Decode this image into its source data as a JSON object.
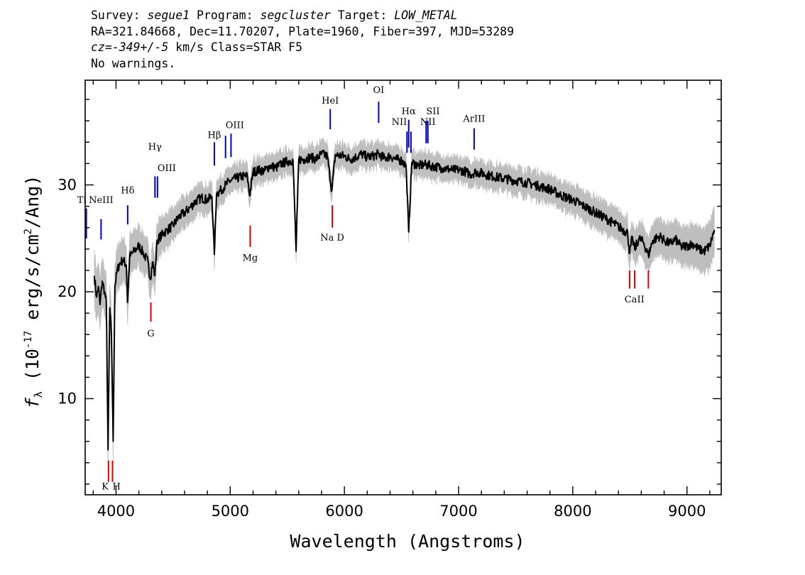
{
  "header": {
    "survey_label": "Survey: ",
    "survey": "segue1",
    "program_label": " Program: ",
    "program": "segcluster",
    "target_label": " Target: ",
    "target": "LOW_METAL",
    "line2": "RA=321.84668, Dec=11.70207, Plate=1960, Fiber=397, MJD=53289",
    "cz_label": "cz=",
    "cz_value": "-349+/-5",
    "cz_rest": " km/s Class=STAR F5",
    "line4": "No warnings."
  },
  "chart_data": {
    "type": "line",
    "xlabel": "Wavelength (Angstroms)",
    "ylabel": "f_λ (10^-17 erg/s/cm^2/Ang)",
    "ylabel_parts": {
      "f": "f",
      "sub": "λ",
      "pre": " (10",
      "exp": "-17",
      "mid": " erg/s/cm",
      "exp2": "2",
      "post": "/Ang)"
    },
    "xlim": [
      3730,
      9300
    ],
    "ylim": [
      1,
      39.8
    ],
    "x_ticks": [
      4000,
      5000,
      6000,
      7000,
      8000,
      9000
    ],
    "y_ticks": [
      10,
      20,
      30
    ],
    "x_minor_step": 200,
    "y_minor_step": 2,
    "series": [
      {
        "role": "flux",
        "color": "#000000",
        "points": [
          [
            3810,
            21.5
          ],
          [
            3830,
            19.5
          ],
          [
            3845,
            20.5
          ],
          [
            3860,
            18.8
          ],
          [
            3880,
            21.0
          ],
          [
            3900,
            20.0
          ],
          [
            3915,
            19.0
          ],
          [
            3930,
            5.2
          ],
          [
            3945,
            18.5
          ],
          [
            3960,
            16.0
          ],
          [
            3975,
            6.0
          ],
          [
            3990,
            20.5
          ],
          [
            4010,
            22.0
          ],
          [
            4030,
            22.6
          ],
          [
            4060,
            23.0
          ],
          [
            4090,
            22.5
          ],
          [
            4101,
            19.0
          ],
          [
            4120,
            23.3
          ],
          [
            4160,
            23.8
          ],
          [
            4200,
            24.3
          ],
          [
            4240,
            23.6
          ],
          [
            4280,
            22.8
          ],
          [
            4300,
            21.2
          ],
          [
            4320,
            22.8
          ],
          [
            4340,
            21.5
          ],
          [
            4360,
            24.8
          ],
          [
            4400,
            25.3
          ],
          [
            4450,
            25.8
          ],
          [
            4500,
            26.2
          ],
          [
            4550,
            27.0
          ],
          [
            4600,
            27.4
          ],
          [
            4650,
            27.9
          ],
          [
            4700,
            28.5
          ],
          [
            4750,
            28.8
          ],
          [
            4800,
            28.6
          ],
          [
            4840,
            28.9
          ],
          [
            4861,
            23.5
          ],
          [
            4880,
            29.2
          ],
          [
            4920,
            29.5
          ],
          [
            4960,
            30.0
          ],
          [
            5000,
            30.4
          ],
          [
            5050,
            30.6
          ],
          [
            5100,
            30.8
          ],
          [
            5150,
            30.8
          ],
          [
            5170,
            29.0
          ],
          [
            5200,
            31.2
          ],
          [
            5250,
            31.4
          ],
          [
            5300,
            31.3
          ],
          [
            5350,
            31.8
          ],
          [
            5400,
            31.6
          ],
          [
            5450,
            32.0
          ],
          [
            5500,
            32.2
          ],
          [
            5550,
            32.3
          ],
          [
            5577,
            23.8
          ],
          [
            5600,
            32.4
          ],
          [
            5650,
            32.4
          ],
          [
            5700,
            32.6
          ],
          [
            5750,
            32.4
          ],
          [
            5800,
            32.9
          ],
          [
            5850,
            32.7
          ],
          [
            5890,
            29.5
          ],
          [
            5920,
            32.8
          ],
          [
            6000,
            32.7
          ],
          [
            6050,
            32.4
          ],
          [
            6100,
            32.6
          ],
          [
            6150,
            32.9
          ],
          [
            6200,
            32.6
          ],
          [
            6250,
            32.7
          ],
          [
            6300,
            32.9
          ],
          [
            6350,
            32.5
          ],
          [
            6400,
            32.7
          ],
          [
            6450,
            32.4
          ],
          [
            6500,
            32.3
          ],
          [
            6540,
            31.8
          ],
          [
            6563,
            25.6
          ],
          [
            6590,
            32.1
          ],
          [
            6650,
            31.8
          ],
          [
            6700,
            31.9
          ],
          [
            6750,
            31.8
          ],
          [
            6800,
            31.7
          ],
          [
            6850,
            31.6
          ],
          [
            6900,
            31.5
          ],
          [
            6950,
            31.4
          ],
          [
            7000,
            31.4
          ],
          [
            7050,
            31.3
          ],
          [
            7100,
            31.0
          ],
          [
            7150,
            31.2
          ],
          [
            7200,
            31.1
          ],
          [
            7300,
            30.8
          ],
          [
            7400,
            30.6
          ],
          [
            7500,
            30.4
          ],
          [
            7600,
            30.2
          ],
          [
            7700,
            29.9
          ],
          [
            7800,
            29.6
          ],
          [
            7900,
            29.0
          ],
          [
            8000,
            28.6
          ],
          [
            8100,
            28.0
          ],
          [
            8200,
            27.4
          ],
          [
            8300,
            26.8
          ],
          [
            8400,
            26.1
          ],
          [
            8480,
            25.5
          ],
          [
            8498,
            23.6
          ],
          [
            8520,
            25.0
          ],
          [
            8542,
            24.0
          ],
          [
            8580,
            25.0
          ],
          [
            8620,
            24.6
          ],
          [
            8662,
            23.4
          ],
          [
            8700,
            24.8
          ],
          [
            8760,
            25.2
          ],
          [
            8800,
            24.8
          ],
          [
            8850,
            24.5
          ],
          [
            8900,
            24.9
          ],
          [
            8950,
            24.2
          ],
          [
            9000,
            24.3
          ],
          [
            9050,
            24.5
          ],
          [
            9100,
            24.0
          ],
          [
            9150,
            23.8
          ],
          [
            9200,
            24.3
          ],
          [
            9240,
            25.8
          ]
        ]
      },
      {
        "role": "error-band",
        "color": "#bebebe",
        "points": [
          [
            3800,
            2.2
          ],
          [
            4000,
            1.8
          ],
          [
            4300,
            1.5
          ],
          [
            4600,
            1.2
          ],
          [
            5000,
            1.0
          ],
          [
            5500,
            0.9
          ],
          [
            6000,
            0.9
          ],
          [
            6500,
            0.9
          ],
          [
            7000,
            0.9
          ],
          [
            7500,
            1.0
          ],
          [
            8000,
            1.1
          ],
          [
            8500,
            1.3
          ],
          [
            9000,
            1.6
          ],
          [
            9240,
            2.0
          ]
        ]
      }
    ],
    "emission_lines": [
      {
        "label": "Ti",
        "wavelength": 3740,
        "y0": 25.0,
        "y1": 27.8,
        "label_y": 28.3,
        "align": "end"
      },
      {
        "label": "NeIII",
        "wavelength": 3869,
        "y0": 24.9,
        "y1": 26.8,
        "label_y": 28.3,
        "align": "middle"
      },
      {
        "label": "Hδ",
        "wavelength": 4102,
        "y0": 26.3,
        "y1": 28.1,
        "label_y": 29.2,
        "align": "middle"
      },
      {
        "label": "Hγ",
        "wavelength": 4341,
        "y0": 28.8,
        "y1": 30.8,
        "label_y": 33.3,
        "align": "middle"
      },
      {
        "label": "OIII",
        "wavelength": 4363,
        "y0": 28.8,
        "y1": 30.8,
        "label_y": 31.3,
        "align": "start"
      },
      {
        "label": "Hβ",
        "wavelength": 4861,
        "y0": 31.8,
        "y1": 34.0,
        "label_y": 34.4,
        "align": "middle"
      },
      {
        "label": "OIII",
        "wavelength": 4959,
        "y0": 32.5,
        "y1": 34.6,
        "label_y": 35.3,
        "align": "start"
      },
      {
        "label": "OIII",
        "wavelength": 5007,
        "y0": 32.6,
        "y1": 34.8,
        "label_y": 0,
        "align": "none"
      },
      {
        "label": "HeI",
        "wavelength": 5876,
        "y0": 35.2,
        "y1": 37.1,
        "label_y": 37.6,
        "align": "middle"
      },
      {
        "label": "OI",
        "wavelength": 6300,
        "y0": 35.8,
        "y1": 37.8,
        "label_y": 38.6,
        "align": "middle"
      },
      {
        "label": "NII",
        "wavelength": 6548,
        "y0": 33.0,
        "y1": 35.0,
        "label_y": 35.6,
        "align": "end"
      },
      {
        "label": "Hα",
        "wavelength": 6563,
        "y0": 33.5,
        "y1": 36.1,
        "label_y": 36.6,
        "align": "middle"
      },
      {
        "label": "NII",
        "wavelength": 6583,
        "y0": 33.0,
        "y1": 35.0,
        "label_y": 0,
        "align": "none"
      },
      {
        "label": "SII",
        "wavelength": 6716,
        "y0": 33.9,
        "y1": 36.0,
        "label_y": 36.6,
        "align": "start"
      },
      {
        "label": "NII",
        "wavelength": 6731,
        "y0": 33.9,
        "y1": 36.0,
        "label_y": 35.6,
        "align": "middle"
      },
      {
        "label": "ArIII",
        "wavelength": 7136,
        "y0": 33.3,
        "y1": 35.3,
        "label_y": 35.9,
        "align": "middle"
      }
    ],
    "absorption_lines": [
      {
        "label": "K",
        "wavelength": 3934,
        "y0": 2.2,
        "y1": 4.2,
        "label_y": 1.5,
        "align": "end"
      },
      {
        "label": "H",
        "wavelength": 3969,
        "y0": 2.2,
        "y1": 4.2,
        "label_y": 1.5,
        "align": "start"
      },
      {
        "label": "G",
        "wavelength": 4305,
        "y0": 17.2,
        "y1": 19.0,
        "label_y": 15.8,
        "align": "middle"
      },
      {
        "label": "Mg",
        "wavelength": 5175,
        "y0": 24.2,
        "y1": 26.2,
        "label_y": 22.9,
        "align": "middle"
      },
      {
        "label": "Na D",
        "wavelength": 5894,
        "y0": 26.0,
        "y1": 28.1,
        "label_y": 24.8,
        "align": "middle"
      },
      {
        "label": "CaII",
        "wavelength": 8498,
        "y0": 20.3,
        "y1": 22.0,
        "label_y": 19.0,
        "align": "middle",
        "label_x": 8540
      },
      {
        "label": "CaII",
        "wavelength": 8542,
        "y0": 20.3,
        "y1": 22.0,
        "label_y": 0,
        "align": "none"
      },
      {
        "label": "CaII",
        "wavelength": 8662,
        "y0": 20.3,
        "y1": 22.0,
        "label_y": 0,
        "align": "none"
      }
    ],
    "colors": {
      "emission": "#0000cd",
      "absorption": "#e00000",
      "flux": "#000000",
      "error": "#bebebe"
    }
  }
}
